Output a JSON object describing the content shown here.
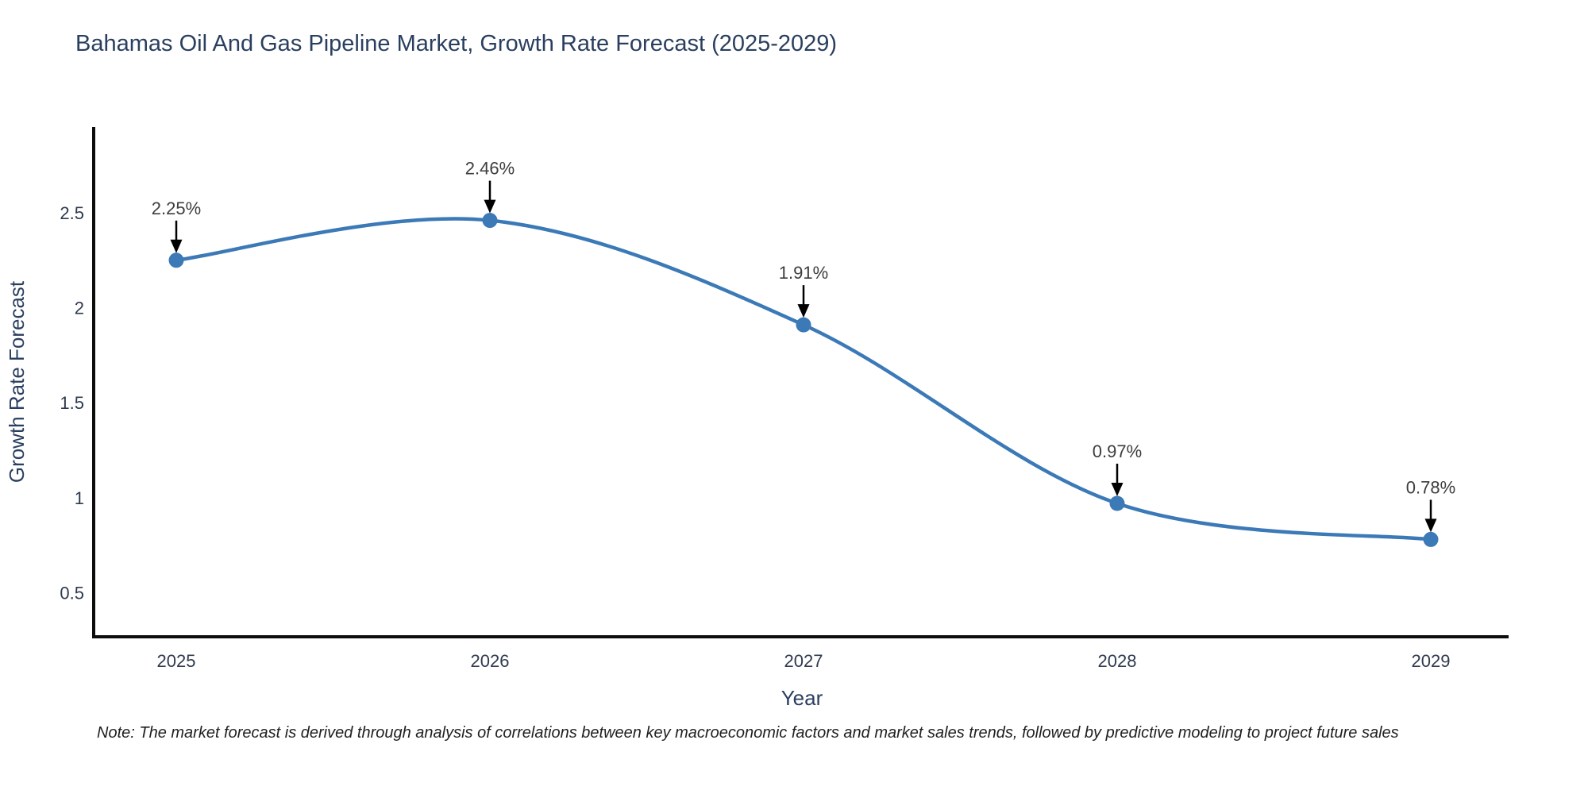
{
  "chart_data": {
    "type": "line",
    "title": "Bahamas Oil And Gas Pipeline Market, Growth Rate Forecast (2025-2029)",
    "xlabel": "Year",
    "ylabel": "Growth Rate Forecast",
    "categories": [
      "2025",
      "2026",
      "2027",
      "2028",
      "2029"
    ],
    "x": [
      2025,
      2026,
      2027,
      2028,
      2029
    ],
    "values": [
      2.25,
      2.46,
      1.91,
      0.97,
      0.78
    ],
    "point_labels": [
      "2.25%",
      "2.46%",
      "1.91%",
      "0.97%",
      "0.78%"
    ],
    "y_ticks": [
      0.5,
      1,
      1.5,
      2,
      2.5
    ],
    "ylim": [
      0.27,
      2.95
    ],
    "xlim": [
      2024.74,
      2029.25
    ],
    "line_shape": "spline",
    "grid": false,
    "legend_position": "none",
    "colors": {
      "line": "#3b79b7",
      "marker": "#3b79b7",
      "axis": "#0d0d0d",
      "title": "#2a3f5f",
      "tick_label": "#2f3a4f",
      "annotation_text": "#3d3d3d",
      "annotation_arrow": "#000000",
      "background": "#ffffff"
    }
  },
  "note": "Note: The market forecast is derived through analysis of correlations between key macroeconomic factors and market sales trends, followed by predictive modeling to project future sales"
}
